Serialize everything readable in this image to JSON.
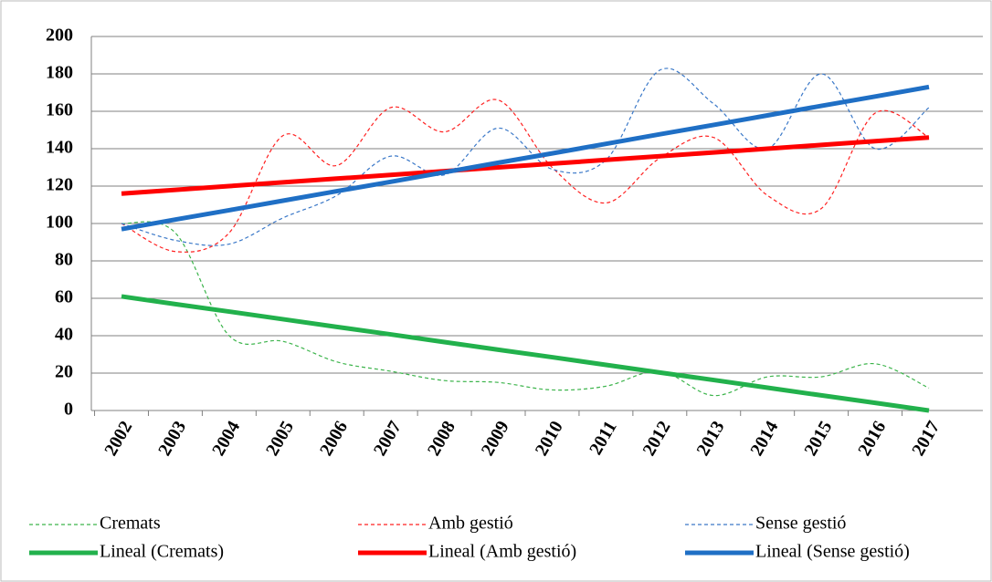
{
  "chart_data": {
    "type": "line",
    "categories": [
      "2002",
      "2003",
      "2004",
      "2005",
      "2006",
      "2007",
      "2008",
      "2009",
      "2010",
      "2011",
      "2012",
      "2013",
      "2014",
      "2015",
      "2016",
      "2017"
    ],
    "ylim": [
      0,
      200
    ],
    "yticks": [
      0,
      20,
      40,
      60,
      80,
      100,
      120,
      140,
      160,
      180,
      200
    ],
    "grid": true,
    "legend": "bottom",
    "series": [
      {
        "name": "Cremats",
        "color": "#3cb44b",
        "style": "dashed",
        "smooth": true,
        "values": [
          100,
          95,
          40,
          37,
          26,
          21,
          16,
          15,
          11,
          13,
          21,
          8,
          18,
          18,
          25,
          12
        ]
      },
      {
        "name": "Amb gestió",
        "color": "#ff2020",
        "style": "dashed",
        "smooth": true,
        "values": [
          100,
          85,
          95,
          147,
          131,
          162,
          149,
          166,
          130,
          111,
          135,
          146,
          115,
          108,
          159,
          146
        ]
      },
      {
        "name": "Sense gestió",
        "color": "#3a78c8",
        "style": "dashed",
        "smooth": true,
        "values": [
          100,
          91,
          89,
          103,
          115,
          136,
          126,
          151,
          129,
          134,
          182,
          164,
          140,
          180,
          140,
          162
        ]
      },
      {
        "name": "Lineal (Cremats)",
        "color": "#22b14c",
        "style": "solid",
        "smooth": false,
        "values": [
          61,
          56.9,
          52.9,
          48.8,
          44.7,
          40.7,
          36.6,
          32.5,
          28.5,
          24.4,
          20.3,
          16.3,
          12.2,
          8.1,
          4.1,
          0
        ]
      },
      {
        "name": "Lineal (Amb gestió)",
        "color": "#ff0000",
        "style": "solid",
        "smooth": false,
        "values": [
          116,
          118,
          120,
          122,
          124,
          126,
          128,
          130,
          132,
          134,
          136,
          138,
          140,
          142,
          144,
          146
        ]
      },
      {
        "name": "Lineal (Sense gestió)",
        "color": "#1f6fc5",
        "style": "solid",
        "smooth": false,
        "values": [
          97,
          102.1,
          107.1,
          112.2,
          117.3,
          122.3,
          127.4,
          132.5,
          137.5,
          142.6,
          147.7,
          152.7,
          157.8,
          162.9,
          167.9,
          173
        ]
      }
    ]
  }
}
